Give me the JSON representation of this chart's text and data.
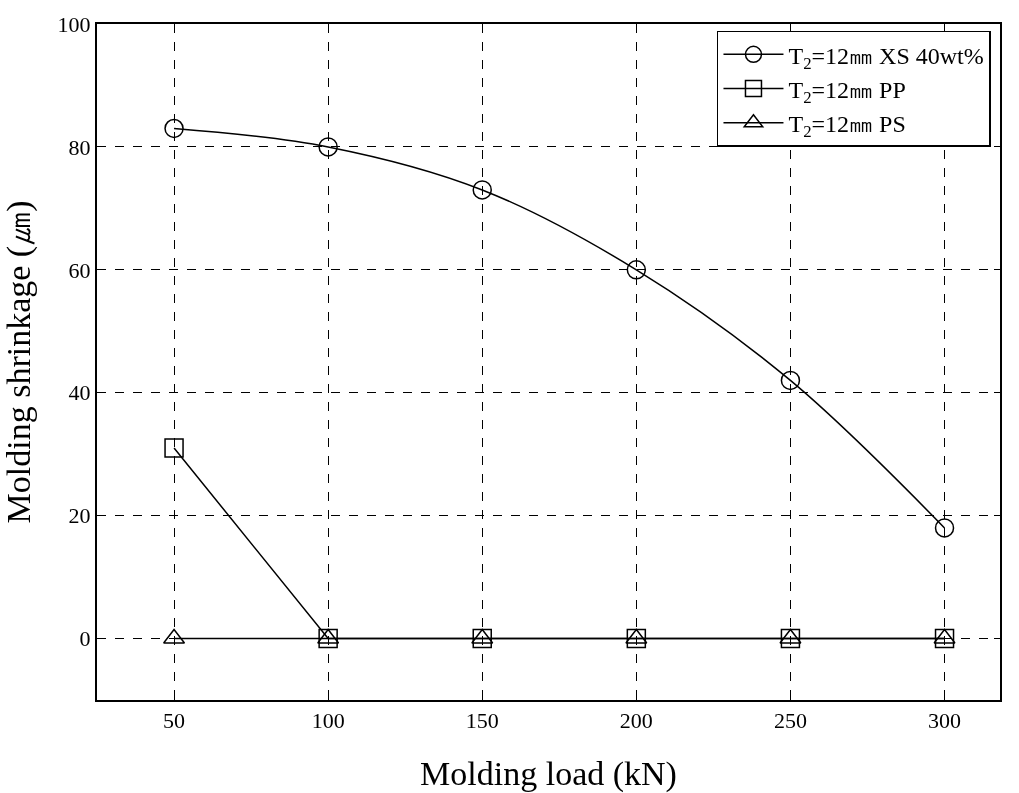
{
  "chart_data": {
    "type": "line",
    "xlabel": "Molding load (kN)",
    "ylabel": "Molding shrinkage (㎛)",
    "x": [
      50,
      100,
      150,
      200,
      250,
      300
    ],
    "series": [
      {
        "name": "T$_{2}$=12㎜ XS 40wt%",
        "color": "#000000",
        "marker": "circle",
        "values": [
          83,
          80,
          73,
          60,
          42,
          18
        ]
      },
      {
        "name": "T$_{2}$=12㎜ PP",
        "color": "#000000",
        "marker": "square",
        "values": [
          31,
          0,
          0,
          0,
          0,
          0
        ]
      },
      {
        "name": "T$_{2}$=12㎜ PS",
        "color": "#000000",
        "marker": "triangle",
        "values": [
          0,
          0,
          0,
          0,
          0,
          0
        ]
      }
    ],
    "xlim": [
      25,
      318
    ],
    "xticks": [
      50,
      100,
      150,
      200,
      250,
      300
    ],
    "ylim": [
      -10,
      100
    ],
    "yticks": [
      0,
      20,
      40,
      60,
      80,
      100
    ],
    "grid": true,
    "legend": "top right",
    "line_style": "solid"
  }
}
